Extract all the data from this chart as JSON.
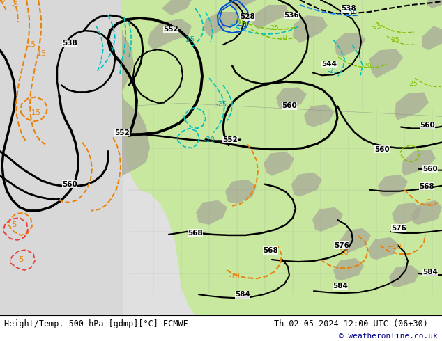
{
  "title_left": "Height/Temp. 500 hPa [gdmp][°C] ECMWF",
  "title_right": "Th 02-05-2024 12:00 UTC (06+30)",
  "copyright": "© weatheronline.co.uk",
  "bg_color": "#ffffff",
  "land_green": "#c8e8a0",
  "land_gray": "#b0b0a0",
  "ocean_color": "#e8e8e8",
  "font_family": "DejaVu Sans",
  "mono_family": "DejaVu Sans Mono",
  "bottom_text_color": "#000000",
  "copyright_color": "#00008b",
  "title_fontsize": 8.5,
  "copyright_fontsize": 8,
  "figsize": [
    6.34,
    4.9
  ],
  "dpi": 100
}
